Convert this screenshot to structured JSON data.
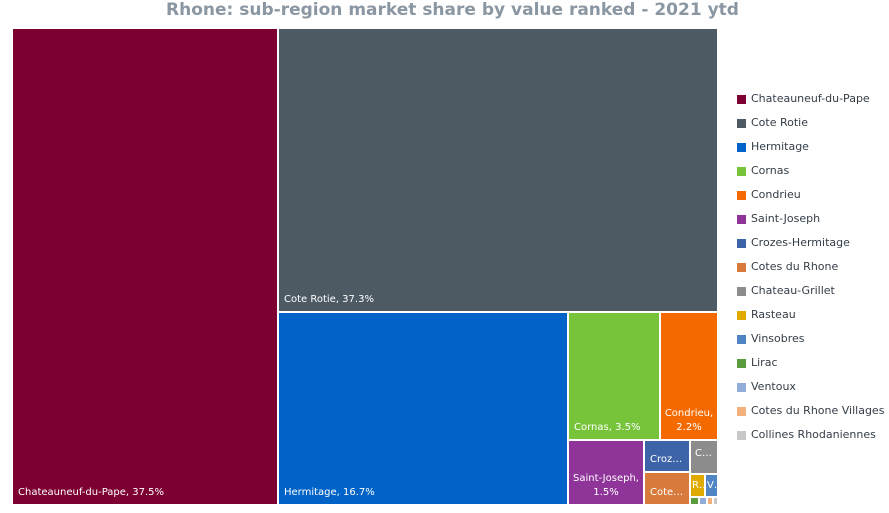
{
  "chart_data": {
    "type": "treemap",
    "title": "Rhone: sub-region market share by value ranked - 2021 ytd",
    "legend_position": "right",
    "series": [
      {
        "name": "Chateauneuf-du-Pape",
        "value": 37.5,
        "color": "#7d0033",
        "label": "Chateauneuf-du-Pape, 37.5%"
      },
      {
        "name": "Cote Rotie",
        "value": 37.3,
        "color": "#4d5a64",
        "label": "Cote Rotie, 37.3%"
      },
      {
        "name": "Hermitage",
        "value": 16.7,
        "color": "#0163c7",
        "label": "Hermitage, 16.7%"
      },
      {
        "name": "Cornas",
        "value": 3.5,
        "color": "#77c43a",
        "label": "Cornas, 3.5%"
      },
      {
        "name": "Condrieu",
        "value": 2.2,
        "color": "#f46a00",
        "label": "Condrieu, 2.2%"
      },
      {
        "name": "Saint-Joseph",
        "value": 1.5,
        "color": "#8f3599",
        "label": "Saint-Joseph, 1.5%"
      },
      {
        "name": "Crozes-Hermitage",
        "value": 0.4,
        "color": "#3d64a8",
        "label": "Croz…"
      },
      {
        "name": "Cotes du Rhone",
        "value": 0.3,
        "color": "#d77a3b",
        "label": "Cote…"
      },
      {
        "name": "Chateau-Grillet",
        "value": 0.25,
        "color": "#8c8c8c",
        "label": "C…"
      },
      {
        "name": "Rasteau",
        "value": 0.12,
        "color": "#e0aa00",
        "label": "R…"
      },
      {
        "name": "Vinsobres",
        "value": 0.1,
        "color": "#4f85c4",
        "label": "V…"
      },
      {
        "name": "Lirac",
        "value": 0.05,
        "color": "#5b9c3f",
        "label": ""
      },
      {
        "name": "Ventoux",
        "value": 0.04,
        "color": "#90acd8",
        "label": ""
      },
      {
        "name": "Cotes du Rhone Villages",
        "value": 0.03,
        "color": "#f1b07c",
        "label": ""
      },
      {
        "name": "Collines Rhodaniennes",
        "value": 0.02,
        "color": "#c8c8c8",
        "label": ""
      }
    ]
  }
}
